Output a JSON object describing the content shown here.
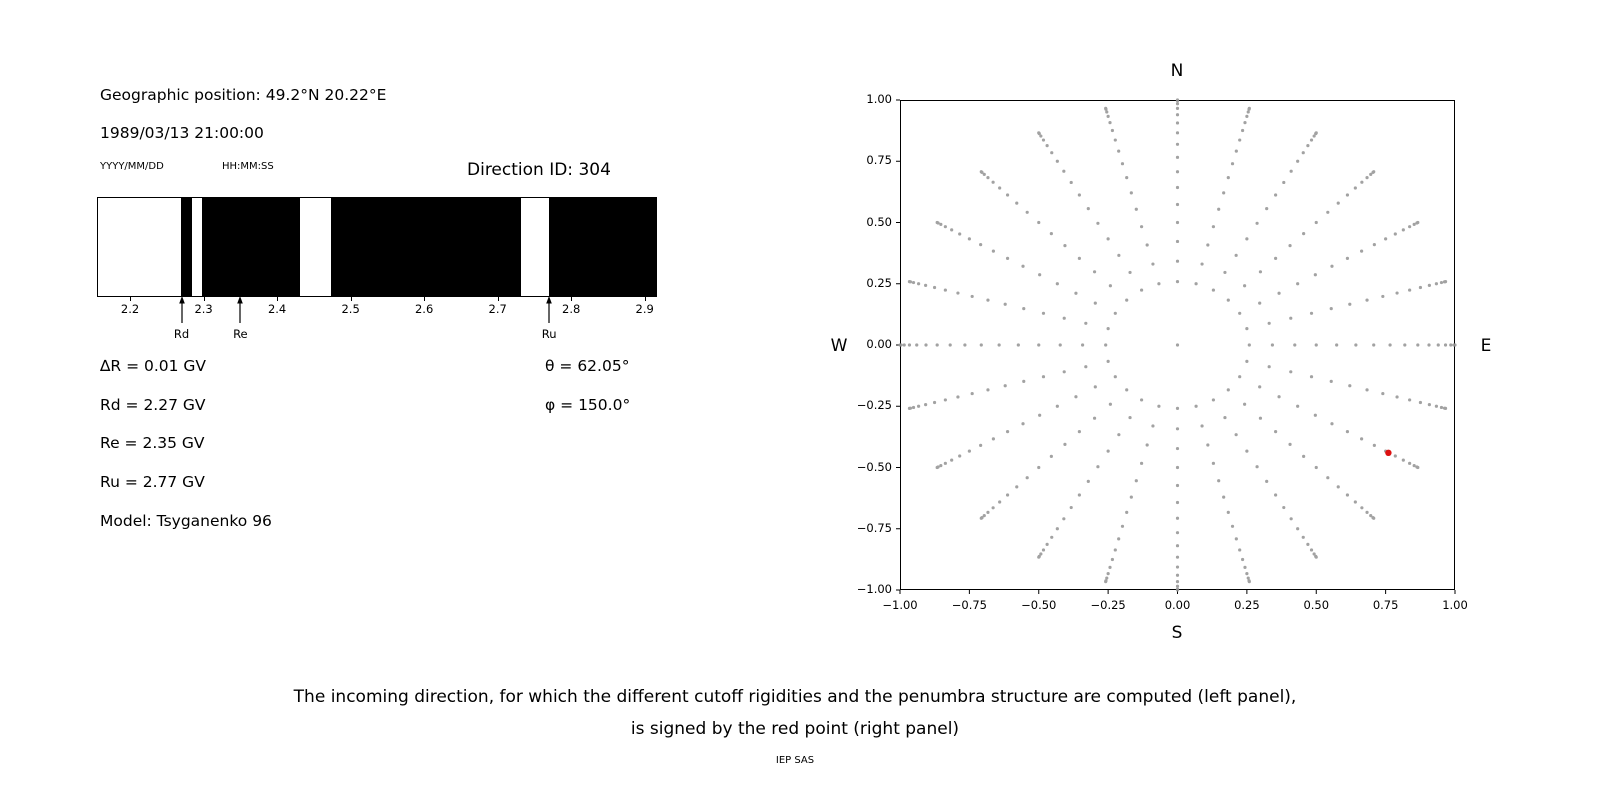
{
  "figure": {
    "background": "#ffffff",
    "text_color": "#000000"
  },
  "left_panel": {
    "geo_position": "Geographic position: 49.2°N 20.22°E",
    "datetime": "1989/03/13 21:00:00",
    "date_format_label": "YYYY/MM/DD",
    "time_format_label": "HH:MM:SS",
    "direction_id": "Direction ID: 304",
    "info_left": [
      "∆R = 0.01 GV",
      "Rd = 2.27 GV",
      "Re = 2.35 GV",
      "Ru = 2.77 GV",
      "Model: Tsyganenko 96"
    ],
    "info_right": [
      "θ = 62.05°",
      "φ = 150.0°"
    ]
  },
  "caption": {
    "line1": "The incoming direction, for which the different cutoff rigidities and the penumbra structure are computed (left panel),",
    "line2": "is signed by the red point (right panel)",
    "credit": "IEP SAS"
  },
  "chart_data": [
    {
      "type": "bar",
      "name": "penumbra-structure",
      "description": "Cutoff rigidity penumbra: black bands = forbidden rigidity intervals, white gaps = allowed",
      "x_unit": "GV",
      "x_range": [
        2.155,
        2.914
      ],
      "tick_values": [
        2.2,
        2.3,
        2.4,
        2.5,
        2.6,
        2.7,
        2.8,
        2.9
      ],
      "tick_labels": [
        "2.2",
        "2.3",
        "2.4",
        "2.5",
        "2.6",
        "2.7",
        "2.8",
        "2.9"
      ],
      "black_segments": [
        [
          2.268,
          2.283
        ],
        [
          2.296,
          2.43
        ],
        [
          2.472,
          2.731
        ],
        [
          2.769,
          2.914
        ]
      ],
      "markers": [
        {
          "label": "Rd",
          "x": 2.27
        },
        {
          "label": "Re",
          "x": 2.35
        },
        {
          "label": "Ru",
          "x": 2.77
        }
      ],
      "band_color": "#000000",
      "background": "#ffffff"
    },
    {
      "type": "scatter",
      "name": "incoming-directions",
      "xlim": [
        -1,
        1
      ],
      "ylim": [
        -1,
        1
      ],
      "grid": false,
      "legend": false,
      "tick_values": [
        -1,
        -0.75,
        -0.5,
        -0.25,
        0,
        0.25,
        0.5,
        0.75,
        1
      ],
      "tick_labels": [
        "−1.00",
        "−0.75",
        "−0.50",
        "−0.25",
        "0.00",
        "0.25",
        "0.50",
        "0.75",
        "1.00"
      ],
      "compass": {
        "top": "N",
        "bottom": "S",
        "left": "W",
        "right": "E"
      },
      "dot_pattern": {
        "kind": "radial-direction-grid",
        "azimuth_count": 24,
        "azimuth_step_deg": 15,
        "zenith_deg": [
          15,
          20,
          25,
          30,
          35,
          40,
          45,
          50,
          55,
          60,
          65,
          70,
          75,
          80,
          85,
          90
        ],
        "radius_rule": "sin(zenith)",
        "center_dot": true,
        "dot_color": "#999999"
      },
      "red_point": {
        "x": 0.76,
        "y": -0.44,
        "color": "#dd1111"
      }
    }
  ]
}
